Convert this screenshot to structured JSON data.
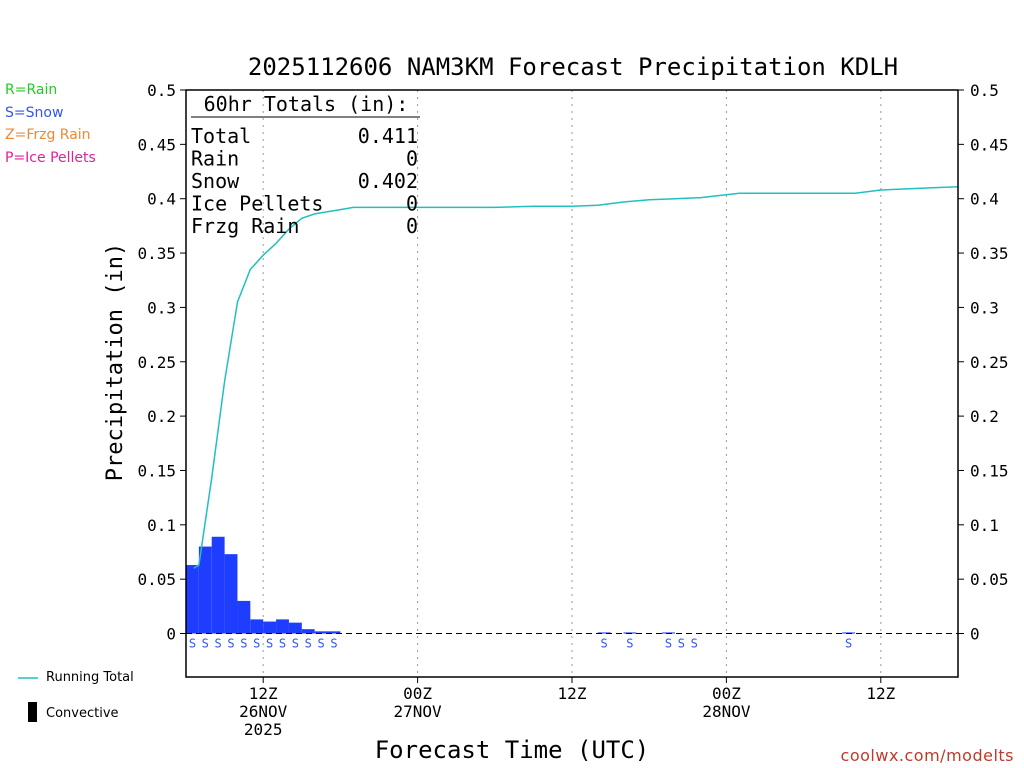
{
  "chart_data": {
    "type": "bar",
    "title": "2025112606 NAM3KM Forecast Precipitation KDLH",
    "xlabel": "Forecast Time (UTC)",
    "ylabel": "Precipitation (in)",
    "ylim": [
      -0.04,
      0.5
    ],
    "xlim": [
      6,
      66
    ],
    "yticks": [
      0,
      0.05,
      0.1,
      0.15,
      0.2,
      0.25,
      0.3,
      0.35,
      0.4,
      0.45,
      0.5
    ],
    "ytick_labels": [
      "0",
      "0.05",
      "0.1",
      "0.15",
      "0.2",
      "0.25",
      "0.3",
      "0.35",
      "0.4",
      "0.45",
      "0.5"
    ],
    "xticks": [
      {
        "hour": 12,
        "lines": [
          "12Z",
          "26NOV",
          "2025"
        ]
      },
      {
        "hour": 24,
        "lines": [
          "00Z",
          "27NOV"
        ]
      },
      {
        "hour": 36,
        "lines": [
          "12Z"
        ]
      },
      {
        "hour": 48,
        "lines": [
          "00Z",
          "28NOV"
        ]
      },
      {
        "hour": 60,
        "lines": [
          "12Z"
        ]
      }
    ],
    "bars": {
      "color": "#1f3dff",
      "hours": [
        7,
        8,
        9,
        10,
        11,
        12,
        13,
        14,
        15,
        16,
        17,
        18,
        39,
        41,
        44,
        58
      ],
      "values": [
        0.063,
        0.08,
        0.089,
        0.073,
        0.03,
        0.013,
        0.011,
        0.013,
        0.01,
        0.004,
        0.002,
        0.002,
        0.001,
        0.001,
        0.001,
        0.001
      ]
    },
    "running_total": {
      "name": "Running Total",
      "color": "#20c0c0",
      "hours": [
        6.6,
        7,
        8,
        9,
        10,
        11,
        12,
        13,
        14,
        15,
        16,
        17,
        18,
        19,
        24,
        30,
        33,
        36,
        38,
        40,
        42,
        44,
        46,
        49,
        54,
        58,
        60,
        62,
        64,
        66
      ],
      "values": [
        0.06,
        0.063,
        0.143,
        0.232,
        0.305,
        0.335,
        0.348,
        0.359,
        0.372,
        0.382,
        0.386,
        0.388,
        0.39,
        0.392,
        0.392,
        0.392,
        0.393,
        0.393,
        0.394,
        0.397,
        0.399,
        0.4,
        0.401,
        0.405,
        0.405,
        0.405,
        0.408,
        0.409,
        0.41,
        0.411
      ]
    },
    "ptype_markers": {
      "hours": [
        7,
        8,
        9,
        10,
        11,
        12,
        13,
        14,
        15,
        16,
        17,
        18,
        39,
        41,
        44,
        45,
        46,
        58
      ],
      "labels": [
        "S",
        "S",
        "S",
        "S",
        "S",
        "S",
        "S",
        "S",
        "S",
        "S",
        "S",
        "S",
        "S",
        "S",
        "S",
        "S",
        "S",
        "S"
      ]
    },
    "totals": {
      "header": "60hr Totals (in):",
      "rows": [
        {
          "label": "Total",
          "value": "0.411"
        },
        {
          "label": "Rain",
          "value": "0"
        },
        {
          "label": "Snow",
          "value": "0.402"
        },
        {
          "label": "Ice Pellets",
          "value": "0"
        },
        {
          "label": "Frzg Rain",
          "value": "0"
        }
      ]
    }
  },
  "ptype_legend": [
    {
      "text": "R=Rain",
      "color": "#22cc22"
    },
    {
      "text": "S=Snow",
      "color": "#3355ee"
    },
    {
      "text": "Z=Frzg Rain",
      "color": "#ee8833"
    },
    {
      "text": "P=Ice Pellets",
      "color": "#dd2299"
    }
  ],
  "bottom_legend": {
    "running_total": "Running Total",
    "convective": "Convective"
  },
  "credit": "coolwx.com/modelts"
}
